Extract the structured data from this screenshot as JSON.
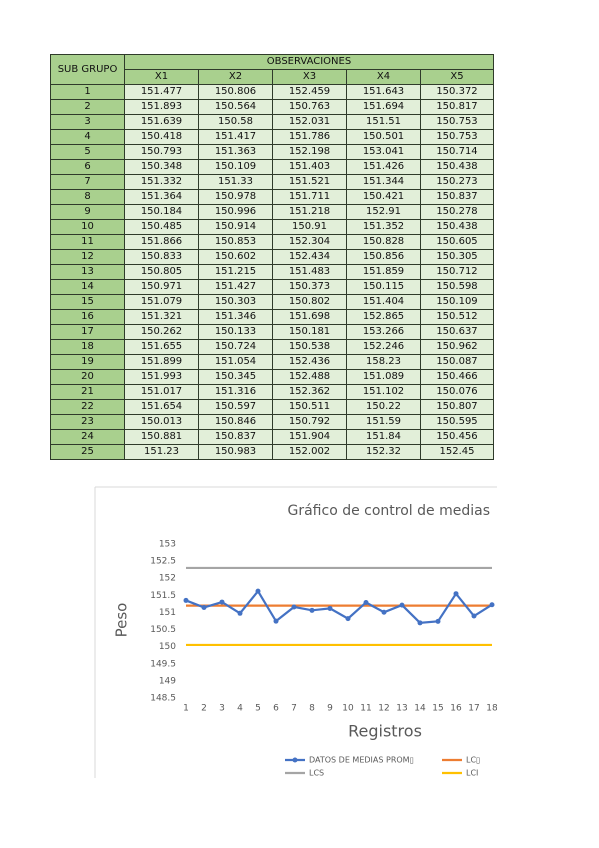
{
  "table": {
    "header": {
      "group": "SUB GRUPO",
      "observations": "OBSERVACIONES",
      "columns": [
        "X1",
        "X2",
        "X3",
        "X4",
        "X5"
      ]
    },
    "rows": [
      [
        "1",
        "151.477",
        "150.806",
        "152.459",
        "151.643",
        "150.372"
      ],
      [
        "2",
        "151.893",
        "150.564",
        "150.763",
        "151.694",
        "150.817"
      ],
      [
        "3",
        "151.639",
        "150.58",
        "152.031",
        "151.51",
        "150.753"
      ],
      [
        "4",
        "150.418",
        "151.417",
        "151.786",
        "150.501",
        "150.753"
      ],
      [
        "5",
        "150.793",
        "151.363",
        "152.198",
        "153.041",
        "150.714"
      ],
      [
        "6",
        "150.348",
        "150.109",
        "151.403",
        "151.426",
        "150.438"
      ],
      [
        "7",
        "151.332",
        "151.33",
        "151.521",
        "151.344",
        "150.273"
      ],
      [
        "8",
        "151.364",
        "150.978",
        "151.711",
        "150.421",
        "150.837"
      ],
      [
        "9",
        "150.184",
        "150.996",
        "151.218",
        "152.91",
        "150.278"
      ],
      [
        "10",
        "150.485",
        "150.914",
        "150.91",
        "151.352",
        "150.438"
      ],
      [
        "11",
        "151.866",
        "150.853",
        "152.304",
        "150.828",
        "150.605"
      ],
      [
        "12",
        "150.833",
        "150.602",
        "152.434",
        "150.856",
        "150.305"
      ],
      [
        "13",
        "150.805",
        "151.215",
        "151.483",
        "151.859",
        "150.712"
      ],
      [
        "14",
        "150.971",
        "151.427",
        "150.373",
        "150.115",
        "150.598"
      ],
      [
        "15",
        "151.079",
        "150.303",
        "150.802",
        "151.404",
        "150.109"
      ],
      [
        "16",
        "151.321",
        "151.346",
        "151.698",
        "152.865",
        "150.512"
      ],
      [
        "17",
        "150.262",
        "150.133",
        "150.181",
        "153.266",
        "150.637"
      ],
      [
        "18",
        "151.655",
        "150.724",
        "150.538",
        "152.246",
        "150.962"
      ],
      [
        "19",
        "151.899",
        "151.054",
        "152.436",
        "158.23",
        "150.087"
      ],
      [
        "20",
        "151.993",
        "150.345",
        "152.488",
        "151.089",
        "150.466"
      ],
      [
        "21",
        "151.017",
        "151.316",
        "152.362",
        "151.102",
        "150.076"
      ],
      [
        "22",
        "151.654",
        "150.597",
        "150.511",
        "150.22",
        "150.807"
      ],
      [
        "23",
        "150.013",
        "150.846",
        "150.792",
        "151.59",
        "150.595"
      ],
      [
        "24",
        "150.881",
        "150.837",
        "151.904",
        "151.84",
        "150.456"
      ],
      [
        "25",
        "151.23",
        "150.983",
        "152.002",
        "152.32",
        "152.45"
      ]
    ]
  },
  "chart_data": {
    "type": "line",
    "title": "Gráfico de control de medias",
    "x_label": "Registros",
    "y_label": "Peso",
    "categories": [
      "1",
      "2",
      "3",
      "4",
      "5",
      "6",
      "7",
      "8",
      "9",
      "10",
      "11",
      "12",
      "13",
      "14",
      "15",
      "16",
      "17",
      "18"
    ],
    "ylim": [
      148.5,
      153
    ],
    "yticks": [
      148.5,
      149,
      149.5,
      150,
      150.5,
      151,
      151.5,
      152,
      152.5,
      153
    ],
    "grid": false,
    "legend": "bottom",
    "series": [
      {
        "name": "DATOS DE MEDIAS PROM▯",
        "color": "#4472c4",
        "markers": true,
        "values": [
          151.351,
          151.146,
          151.303,
          150.975,
          151.622,
          150.745,
          151.16,
          151.062,
          151.117,
          150.82,
          151.291,
          151.006,
          151.215,
          150.697,
          150.739,
          151.548,
          150.896,
          151.225
        ]
      },
      {
        "name": "LC▯",
        "color": "#ed7d31",
        "markers": false,
        "values": [
          151.2,
          151.2,
          151.2,
          151.2,
          151.2,
          151.2,
          151.2,
          151.2,
          151.2,
          151.2,
          151.2,
          151.2,
          151.2,
          151.2,
          151.2,
          151.2,
          151.2,
          151.2
        ]
      },
      {
        "name": "LCS",
        "color": "#a5a5a5",
        "markers": false,
        "values": [
          152.3,
          152.3,
          152.3,
          152.3,
          152.3,
          152.3,
          152.3,
          152.3,
          152.3,
          152.3,
          152.3,
          152.3,
          152.3,
          152.3,
          152.3,
          152.3,
          152.3,
          152.3
        ]
      },
      {
        "name": "LCI",
        "color": "#ffc000",
        "markers": false,
        "values": [
          150.05,
          150.05,
          150.05,
          150.05,
          150.05,
          150.05,
          150.05,
          150.05,
          150.05,
          150.05,
          150.05,
          150.05,
          150.05,
          150.05,
          150.05,
          150.05,
          150.05,
          150.05
        ]
      }
    ]
  }
}
